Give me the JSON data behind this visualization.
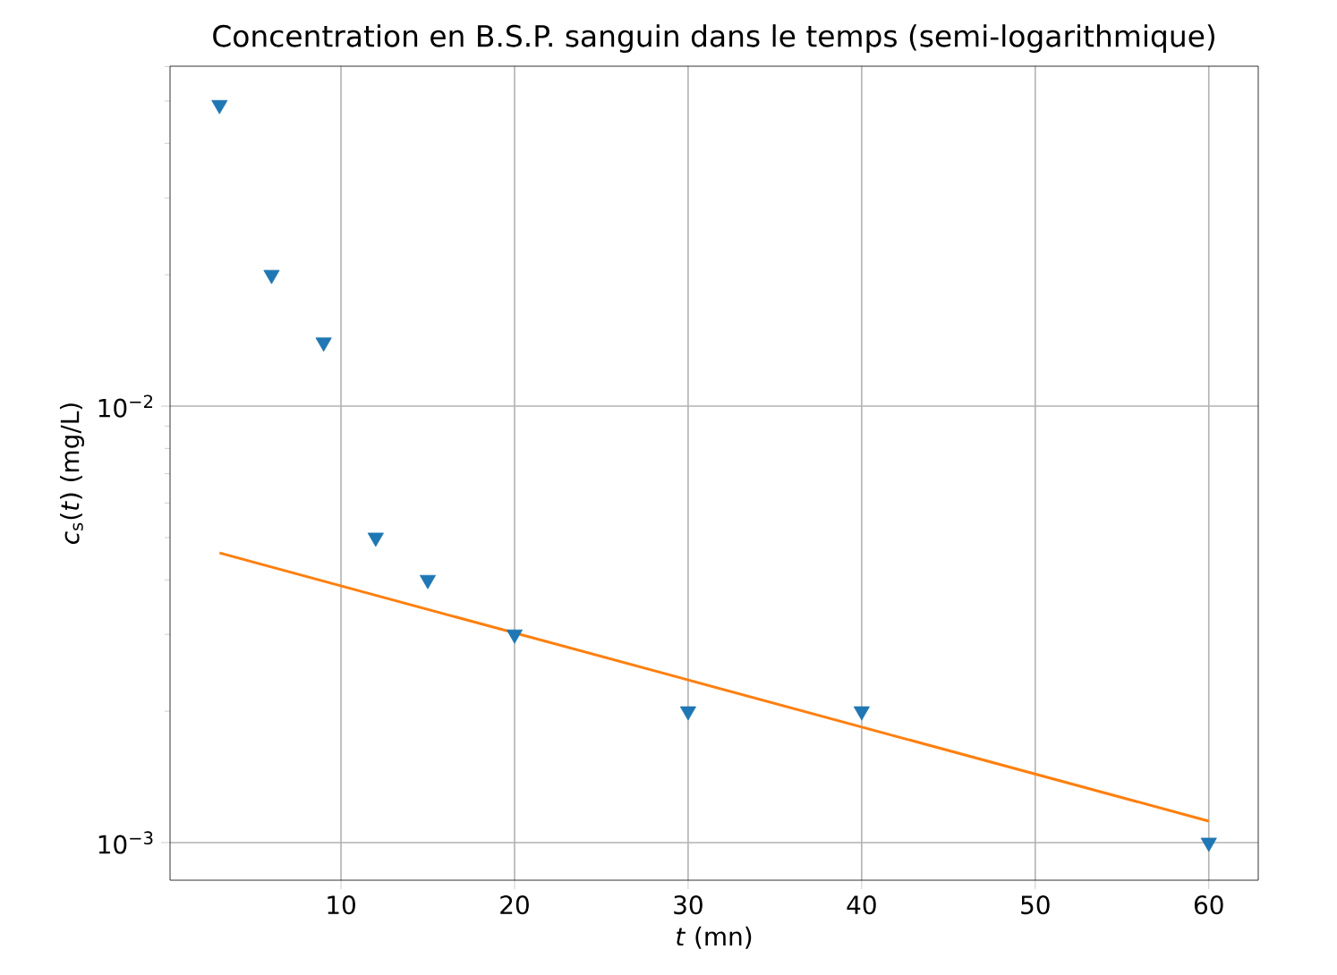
{
  "chart_data": {
    "type": "scatter",
    "title": "Concentration en B.S.P. sanguin dans le temps (semi-logarithmique)",
    "xlabel": "*t* (mn)",
    "ylabel": "*c*$_{s}$(*t*) (mg/L)",
    "log": "y",
    "grid": true,
    "marker": "triangle",
    "xlim": [
      0.15,
      62.85
    ],
    "ylim": [
      0.00082,
      0.0601
    ],
    "xticks": [
      10,
      20,
      30,
      40,
      50,
      60
    ],
    "yticks": [
      {
        "value": 0.001,
        "label": "10$^{−3}$"
      },
      {
        "value": 0.002,
        "label": null
      },
      {
        "value": 0.003,
        "label": null
      },
      {
        "value": 0.004,
        "label": null
      },
      {
        "value": 0.005,
        "label": null
      },
      {
        "value": 0.006,
        "label": null
      },
      {
        "value": 0.007,
        "label": null
      },
      {
        "value": 0.008,
        "label": null
      },
      {
        "value": 0.009,
        "label": null
      },
      {
        "value": 0.01,
        "label": "10$^{−2}$"
      },
      {
        "value": 0.02,
        "label": null
      },
      {
        "value": 0.03,
        "label": null
      },
      {
        "value": 0.04,
        "label": null
      },
      {
        "value": 0.05,
        "label": null
      },
      {
        "value": 0.06,
        "label": null
      }
    ],
    "series": [
      {
        "color": "#1f77b4",
        "x": [
          3,
          6,
          9,
          12,
          15,
          20,
          30,
          40,
          60
        ],
        "values": [
          0.049,
          0.02,
          0.014,
          0.005,
          0.004,
          0.003,
          0.002,
          0.002,
          0.001
        ]
      },
      {
        "type": "line",
        "marker": "none",
        "color": "#ff7f0e",
        "x": [
          3,
          60
        ],
        "values": [
          0.00461,
          0.00112
        ]
      }
    ]
  }
}
